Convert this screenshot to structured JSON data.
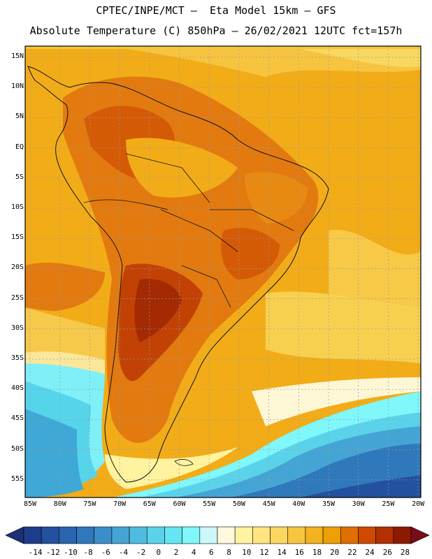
{
  "header": {
    "line1": "CPTEC/INPE/MCT –  Eta Model 15km – GFS",
    "line2": "Absolute Temperature (C) 850hPa – 26/02/2021 12UTC fct=157h"
  },
  "map": {
    "lat_labels": [
      "15N",
      "10N",
      "5N",
      "EQ",
      "5S",
      "10S",
      "15S",
      "20S",
      "25S",
      "30S",
      "35S",
      "40S",
      "45S",
      "50S",
      "55S"
    ],
    "lon_labels": [
      "85W",
      "80W",
      "75W",
      "70W",
      "65W",
      "60W",
      "55W",
      "50W",
      "45W",
      "40W",
      "35W",
      "30W",
      "25W",
      "20W"
    ]
  },
  "colorbar": {
    "labels": [
      "-14",
      "-12",
      "-10",
      "-8",
      "-6",
      "-4",
      "-2",
      "0",
      "2",
      "4",
      "6",
      "8",
      "10",
      "12",
      "14",
      "16",
      "18",
      "20",
      "22",
      "24",
      "26",
      "28"
    ],
    "colors": [
      "#1e3c8c",
      "#23509f",
      "#2a64ae",
      "#2f78bb",
      "#3a8fc8",
      "#44a5d4",
      "#4ebcdf",
      "#5ad3ea",
      "#66e6f2",
      "#7ff7fb",
      "#ccf7fb",
      "#fff8dc",
      "#fff3a0",
      "#fee580",
      "#fcd760",
      "#f7c640",
      "#f3b21e",
      "#ee9f05",
      "#e06e00",
      "#cf4a00",
      "#b33000",
      "#8c1a00"
    ],
    "low_color": "#1c2f78",
    "high_color": "#7a0c1a"
  }
}
